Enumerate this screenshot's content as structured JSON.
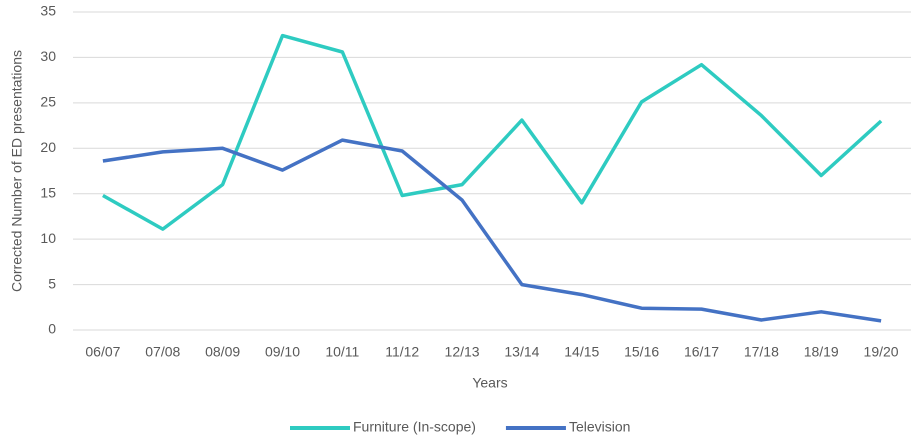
{
  "chart_data": {
    "type": "line",
    "x_label": "Years",
    "y_label": "Corrected Number of ED presentations",
    "categories": [
      "06/07",
      "07/08",
      "08/09",
      "09/10",
      "10/11",
      "11/12",
      "12/13",
      "13/14",
      "14/15",
      "15/16",
      "16/17",
      "17/18",
      "18/19",
      "19/20"
    ],
    "series": [
      {
        "name": "Furniture (In-scope)",
        "color": "#2ecbc1",
        "values": [
          14.8,
          11.1,
          16,
          32.4,
          30.6,
          14.8,
          16,
          23.1,
          14,
          25.1,
          29.2,
          23.6,
          17,
          23
        ]
      },
      {
        "name": "Television",
        "color": "#4472c4",
        "values": [
          18.6,
          19.6,
          20,
          17.6,
          20.9,
          19.7,
          14.3,
          5,
          3.9,
          2.4,
          2.3,
          1.1,
          2,
          1
        ]
      }
    ],
    "ylim": [
      0,
      35
    ],
    "yticks": [
      0,
      5,
      10,
      15,
      20,
      25,
      30,
      35
    ],
    "grid": true,
    "legend": "bottom"
  }
}
